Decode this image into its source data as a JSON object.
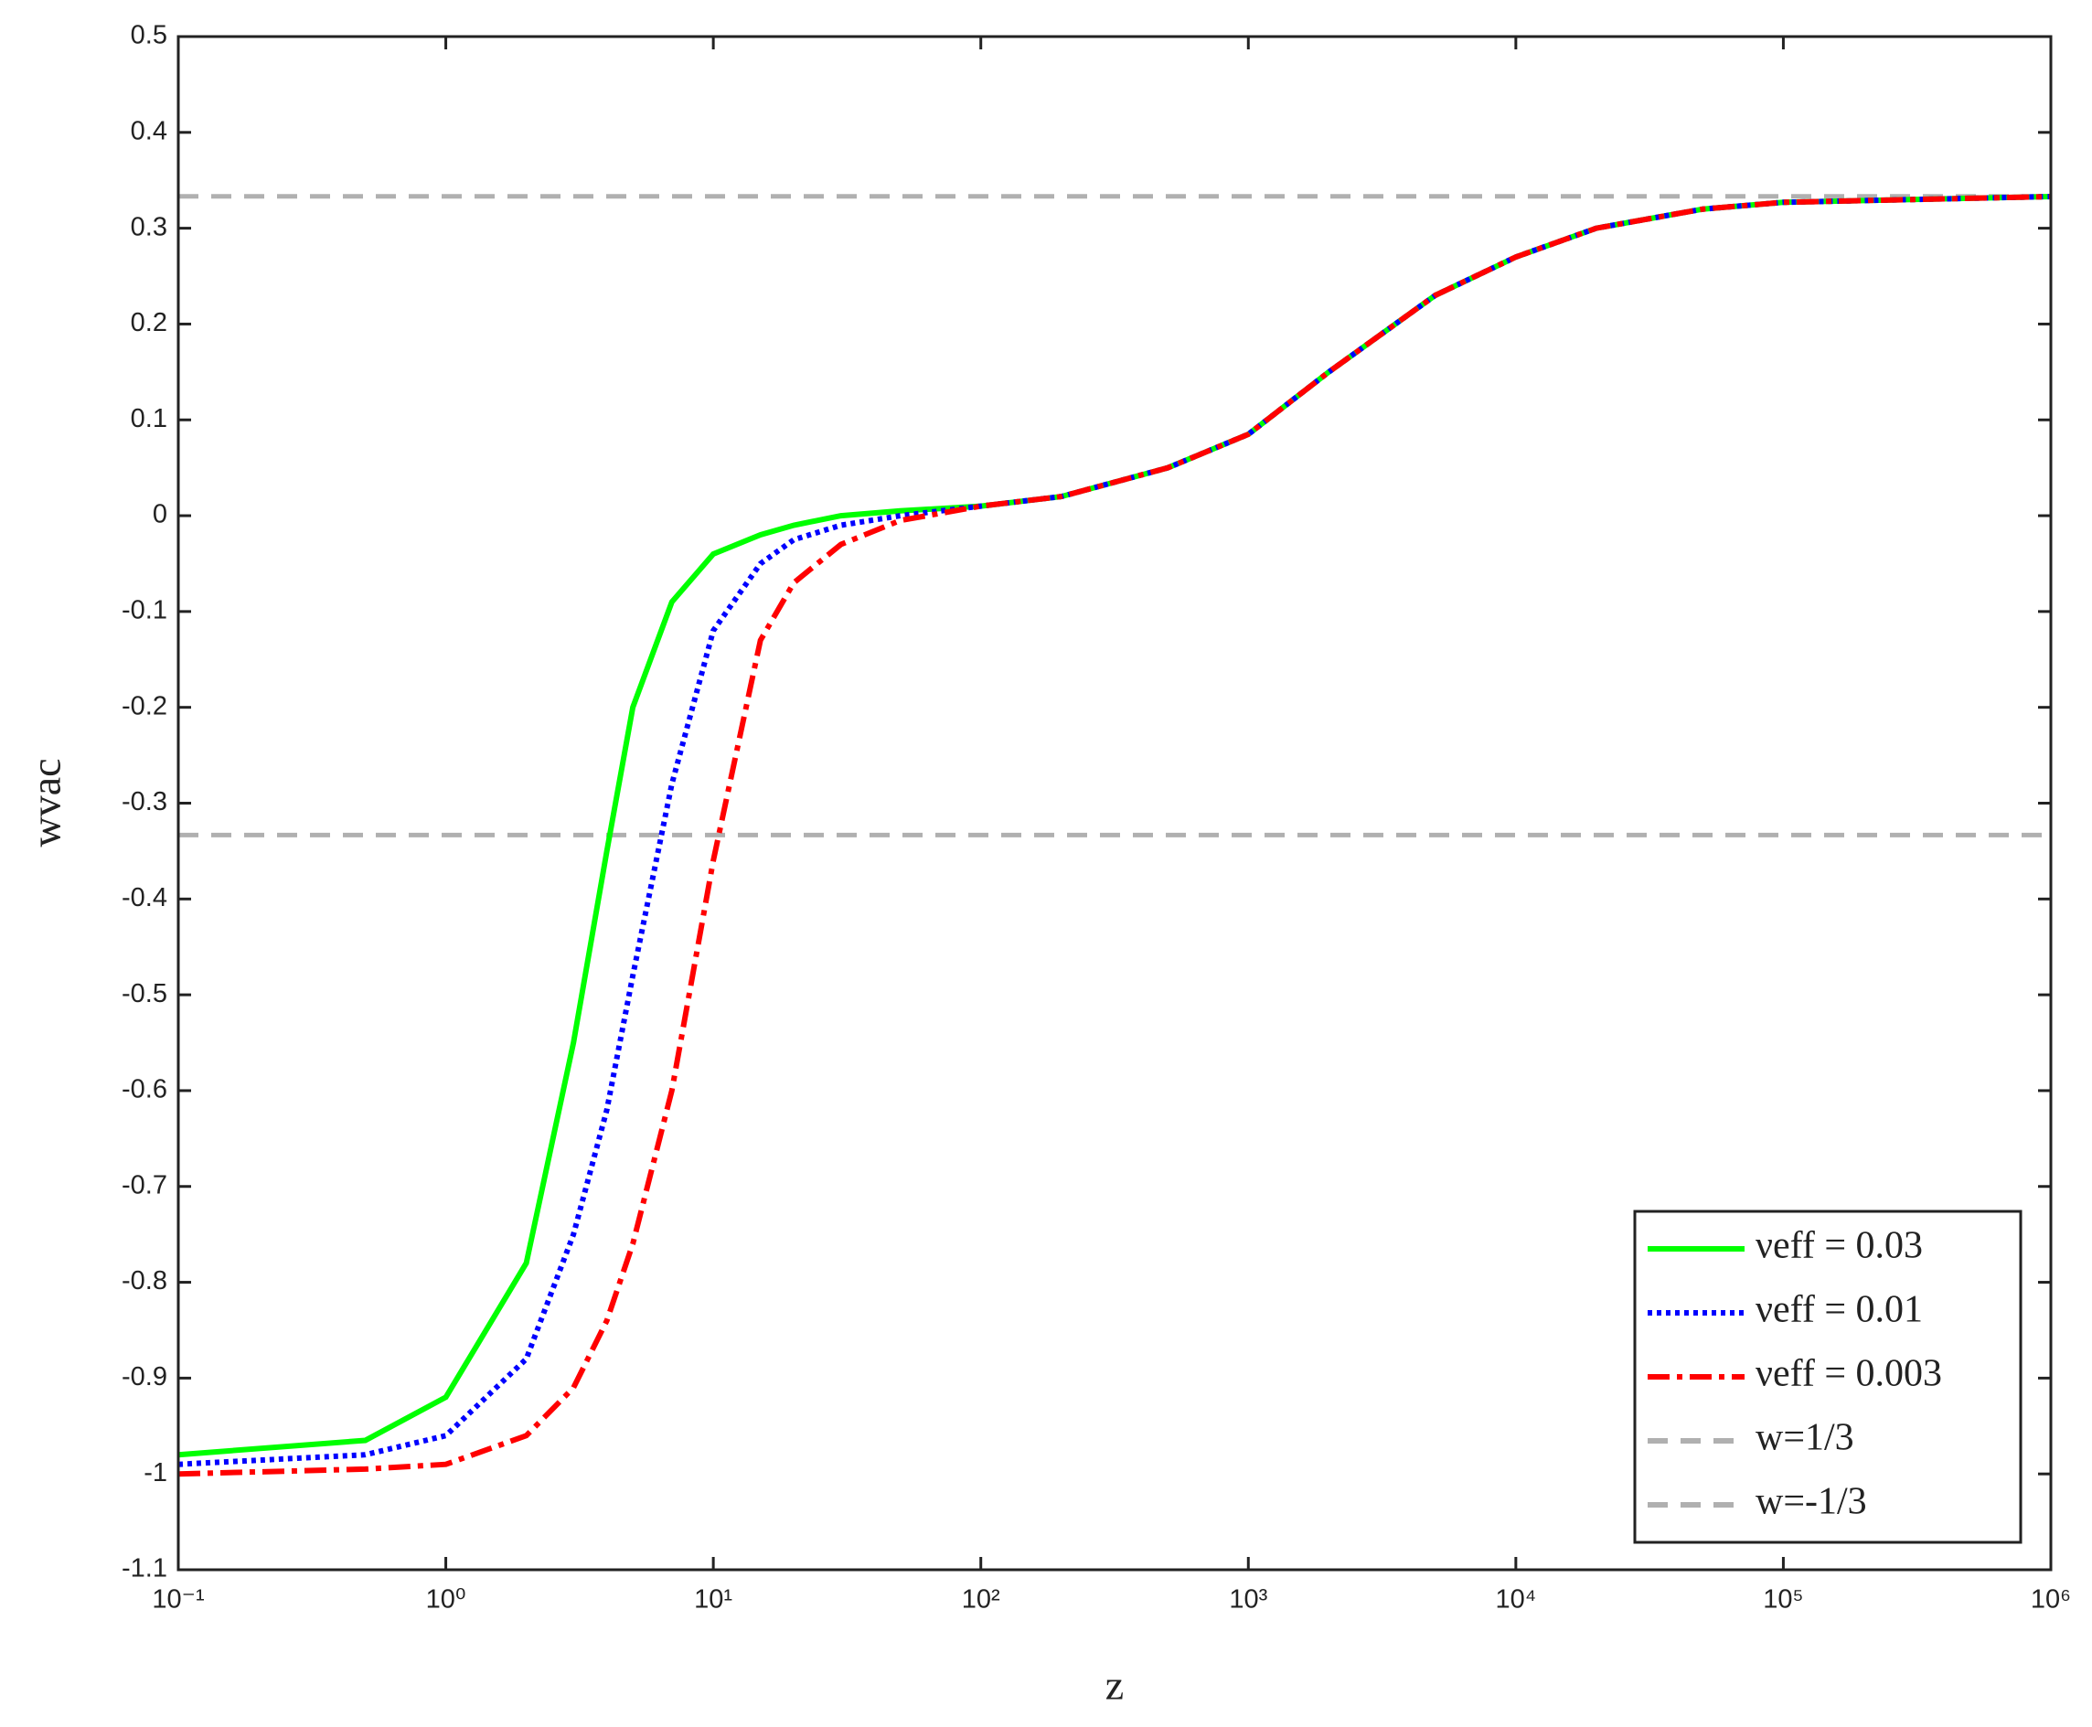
{
  "chart_data": {
    "type": "line",
    "x_label": "z",
    "y_label": "wvac",
    "xscale": "log",
    "x": [
      0.1,
      0.5,
      1,
      2,
      3,
      4,
      5,
      7,
      10,
      15,
      20,
      30,
      50,
      100,
      200,
      500,
      1000,
      2000,
      5000,
      10000,
      20000,
      50000,
      100000,
      1000000
    ],
    "series": [
      {
        "name": "νeff = 0.03",
        "color": "#00ff00",
        "dash": "solid",
        "values": [
          -0.98,
          -0.965,
          -0.92,
          -0.78,
          -0.55,
          -0.35,
          -0.2,
          -0.09,
          -0.04,
          -0.02,
          -0.01,
          0,
          0.005,
          0.01,
          0.02,
          0.05,
          0.085,
          0.15,
          0.23,
          0.27,
          0.3,
          0.32,
          0.327,
          0.333
        ]
      },
      {
        "name": "νeff = 0.01",
        "color": "#0000ff",
        "dash": "dot",
        "values": [
          -0.99,
          -0.98,
          -0.96,
          -0.88,
          -0.75,
          -0.62,
          -0.48,
          -0.28,
          -0.12,
          -0.05,
          -0.025,
          -0.01,
          0,
          0.01,
          0.02,
          0.05,
          0.085,
          0.15,
          0.23,
          0.27,
          0.3,
          0.32,
          0.327,
          0.333
        ]
      },
      {
        "name": "νeff = 0.003",
        "color": "#ff0000",
        "dash": "dashdot",
        "values": [
          -1,
          -0.995,
          -0.99,
          -0.96,
          -0.91,
          -0.84,
          -0.76,
          -0.6,
          -0.36,
          -0.13,
          -0.07,
          -0.03,
          -0.005,
          0.01,
          0.02,
          0.05,
          0.085,
          0.15,
          0.23,
          0.27,
          0.3,
          0.32,
          0.327,
          0.333
        ]
      }
    ],
    "reference_lines": [
      {
        "name": "w=1/3",
        "value": 0.3333,
        "color": "#b0b0b0"
      },
      {
        "name": "w=-1/3",
        "value": -0.3333,
        "color": "#b0b0b0"
      }
    ],
    "xlim": [
      0.1,
      1000000
    ],
    "xticks": [
      {
        "value": 0.1,
        "label": "10⁻¹"
      },
      {
        "value": 1,
        "label": "10⁰"
      },
      {
        "value": 10,
        "label": "10¹"
      },
      {
        "value": 100,
        "label": "10²"
      },
      {
        "value": 1000,
        "label": "10³"
      },
      {
        "value": 10000,
        "label": "10⁴"
      },
      {
        "value": 100000,
        "label": "10⁵"
      },
      {
        "value": 1000000,
        "label": "10⁶"
      }
    ],
    "ylim": [
      -1.1,
      0.5
    ],
    "yticks": [
      -1.1,
      -1,
      -0.9,
      -0.8,
      -0.7,
      -0.6,
      -0.5,
      -0.4,
      -0.3,
      -0.2,
      -0.1,
      0,
      0.1,
      0.2,
      0.3,
      0.4,
      0.5
    ],
    "legend": "lower right"
  }
}
